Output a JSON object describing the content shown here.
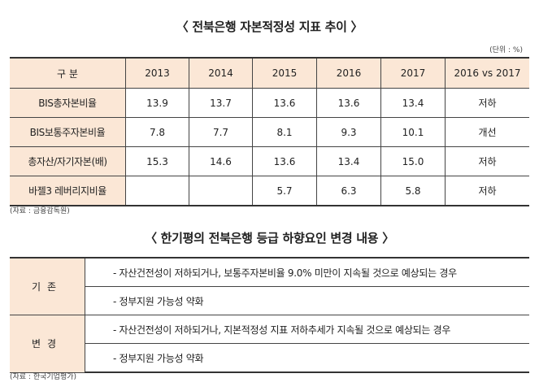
{
  "title1": "〈 전북은행 자본적정성 지표 추이 〉",
  "unit": "(단위 : %)",
  "stats_table": {
    "headers": [
      "구  분",
      "2013",
      "2014",
      "2015",
      "2016",
      "2017",
      "2016 vs 2017"
    ],
    "rows": [
      {
        "label": "BIS총자본비율",
        "values": [
          "13.9",
          "13.7",
          "13.6",
          "13.6",
          "13.4"
        ],
        "trend": "저하"
      },
      {
        "label": "BIS보통주자본비율",
        "values": [
          "7.8",
          "7.7",
          "8.1",
          "9.3",
          "10.1"
        ],
        "trend": "개선"
      },
      {
        "label": "총자산/자기자본(배)",
        "values": [
          "15.3",
          "14.6",
          "13.6",
          "13.4",
          "15.0"
        ],
        "trend": "저하"
      },
      {
        "label": "바젤3 레버리지비율",
        "values": [
          "",
          "",
          "5.7",
          "6.3",
          "5.8"
        ],
        "trend": "저하"
      }
    ]
  },
  "source1": "(자료 : 금융감독원)",
  "title2": "〈 한기평의 전북은행 등급 하향요인 변경 내용 〉",
  "rating_table": {
    "groups": [
      {
        "category": "기존",
        "items": [
          "- 자산건전성이 저하되거나, 보통주자본비율 9.0% 미만이 지속될 것으로 예상되는 경우",
          "- 정부지원 가능성 약화"
        ]
      },
      {
        "category": "변경",
        "items": [
          "- 자산건전성이 저하되거나, 지본적정성 지표 저하추세가 지속될 것으로 예상되는 경우",
          "- 정부지원 가능성 약화"
        ]
      }
    ]
  },
  "source2": "(자료 : 한국기업평가)"
}
